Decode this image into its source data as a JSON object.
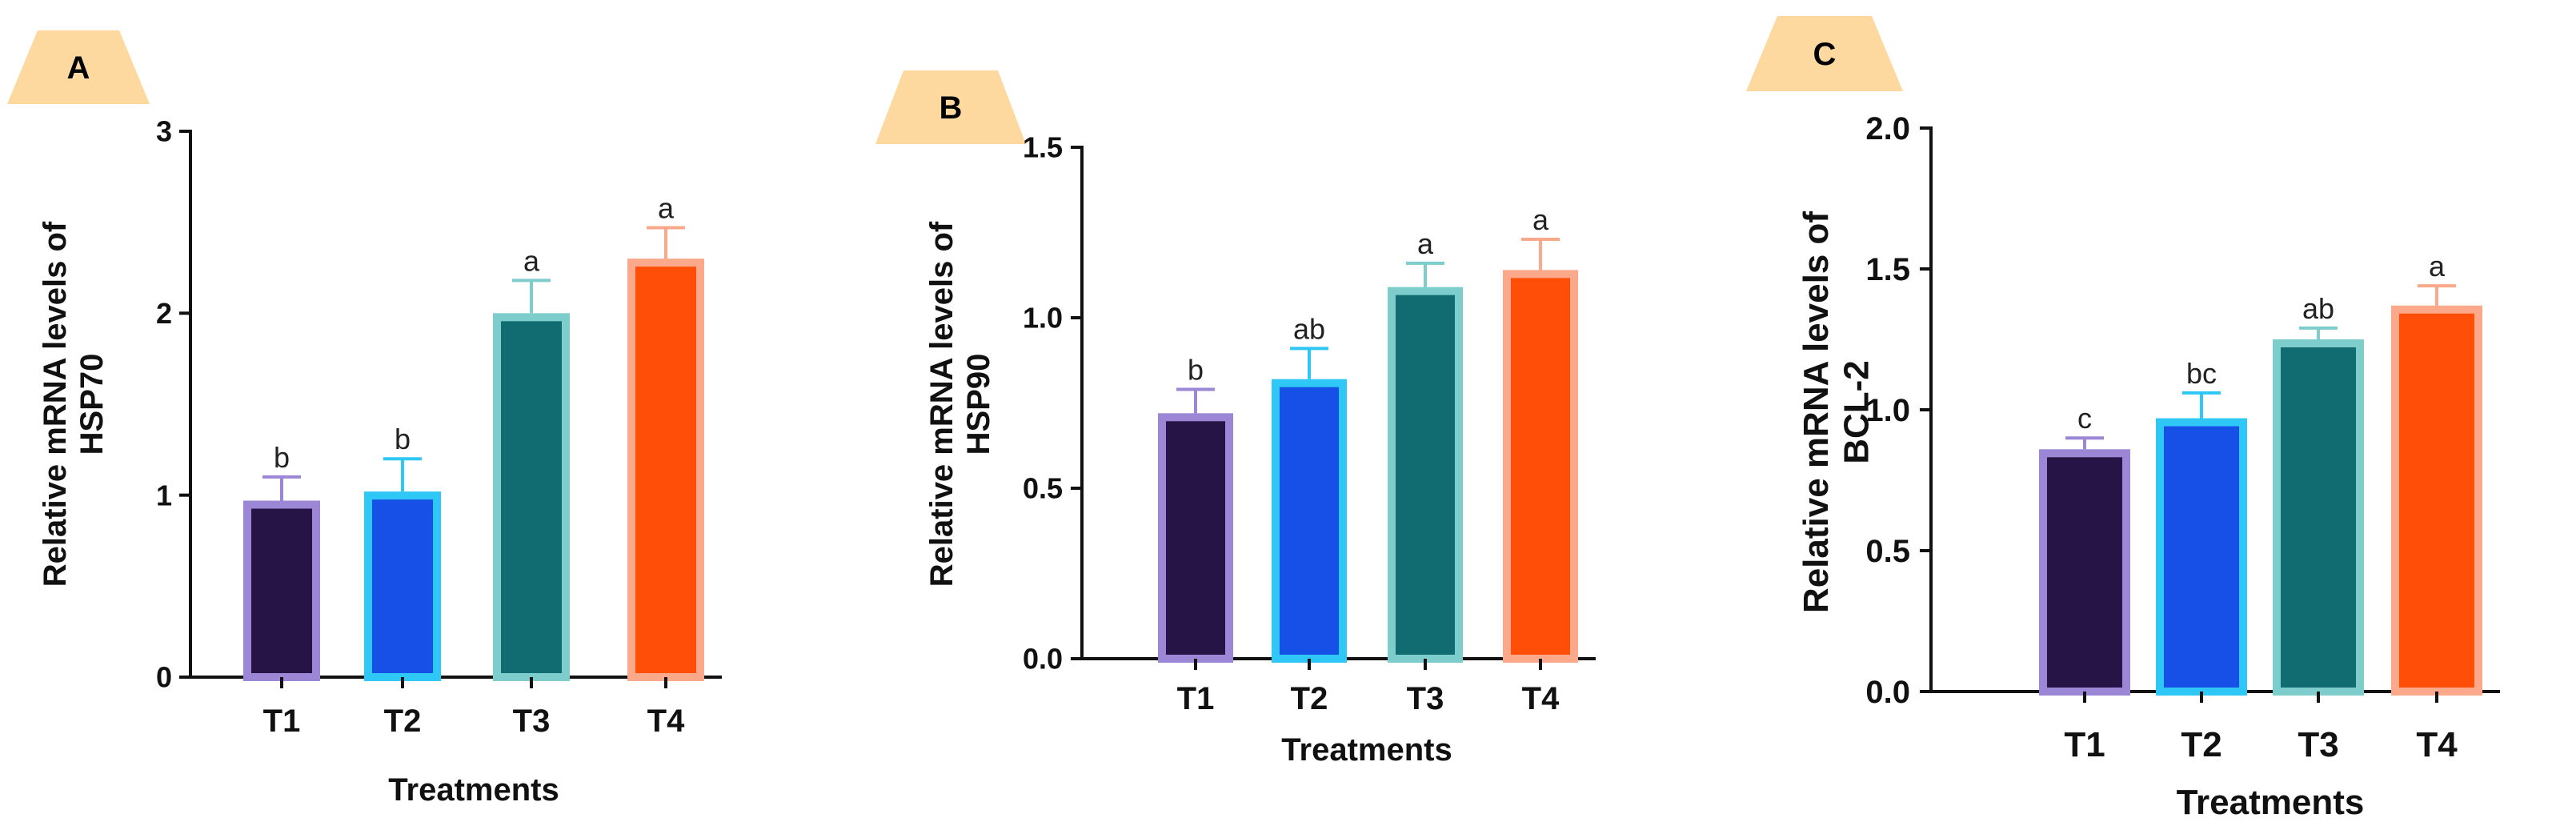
{
  "colors": {
    "badge_fill": "#FDD9A0",
    "axis": "#111111",
    "errorbar": "#000000",
    "bars": [
      {
        "fill": "#271446",
        "edge": "#9C86D6"
      },
      {
        "fill": "#1650E6",
        "edge": "#2FC7F5"
      },
      {
        "fill": "#116C72",
        "edge": "#7CCDCB"
      },
      {
        "fill": "#FF4E07",
        "edge": "#FCA88A"
      }
    ]
  },
  "chart_data": [
    {
      "type": "bar",
      "panel": "A",
      "categories": [
        "T1",
        "T2",
        "T3",
        "T4"
      ],
      "values": [
        0.97,
        1.02,
        2.0,
        2.3
      ],
      "errors": [
        0.13,
        0.18,
        0.18,
        0.17
      ],
      "significance": [
        "b",
        "b",
        "a",
        "a"
      ],
      "ylim": [
        0,
        3
      ],
      "yticks": [
        0,
        1,
        2,
        3
      ],
      "ytick_labels": [
        "0",
        "1",
        "2",
        "3"
      ],
      "ylabel_line1": "Relative mRNA levels of",
      "ylabel_line2": "HSP70",
      "xlabel": "Treatments"
    },
    {
      "type": "bar",
      "panel": "B",
      "categories": [
        "T1",
        "T2",
        "T3",
        "T4"
      ],
      "values": [
        0.72,
        0.82,
        1.09,
        1.14
      ],
      "errors": [
        0.07,
        0.09,
        0.07,
        0.09
      ],
      "significance": [
        "b",
        "ab",
        "a",
        "a"
      ],
      "ylim": [
        0,
        1.5
      ],
      "yticks": [
        0,
        0.5,
        1.0,
        1.5
      ],
      "ytick_labels": [
        "0.0",
        "0.5",
        "1.0",
        "1.5"
      ],
      "ylabel_line1": "Relative mRNA levels of",
      "ylabel_line2": "HSP90",
      "xlabel": "Treatments"
    },
    {
      "type": "bar",
      "panel": "C",
      "categories": [
        "T1",
        "T2",
        "T3",
        "T4"
      ],
      "values": [
        0.86,
        0.97,
        1.25,
        1.37
      ],
      "errors": [
        0.04,
        0.09,
        0.04,
        0.07
      ],
      "significance": [
        "c",
        "bc",
        "ab",
        "a"
      ],
      "ylim": [
        0,
        2.0
      ],
      "yticks": [
        0,
        0.5,
        1.0,
        1.5,
        2.0
      ],
      "ytick_labels": [
        "0.0",
        "0.5",
        "1.0",
        "1.5",
        "2.0"
      ],
      "ylabel_line1": "Relative mRNA levels of",
      "ylabel_line2": "BCL-2",
      "xlabel": "Treatments"
    }
  ]
}
